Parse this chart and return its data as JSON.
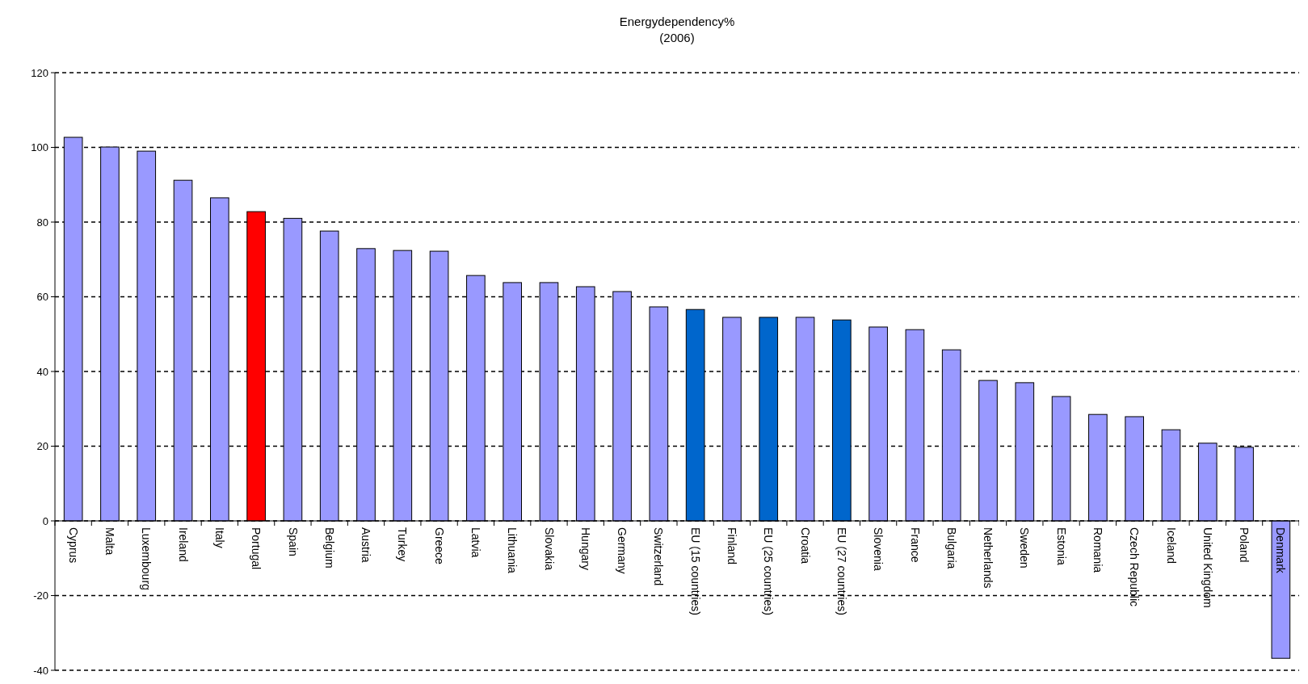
{
  "chart_data": {
    "type": "bar",
    "title": "Energydependency%",
    "subtitle": "(2006)",
    "categories": [
      "Cyprus",
      "Malta",
      "Luxembourg",
      "Ireland",
      "Italy",
      "Portugal",
      "Spain",
      "Belgium",
      "Austria",
      "Turkey",
      "Greece",
      "Latvia",
      "Lithuania",
      "Slovakia",
      "Hungary",
      "Germany",
      "Switzerland",
      "EU (15 countries)",
      "Finland",
      "EU (25 countries)",
      "Croatia",
      "EU (27 countries)",
      "Slovenia",
      "France",
      "Bulgaria",
      "Netherlands",
      "Sweden",
      "Estonia",
      "Romania",
      "Czech Republic",
      "Iceland",
      "United Kingdom",
      "Poland",
      "Denmark"
    ],
    "values": [
      102.7,
      100.1,
      99,
      91.2,
      86.5,
      82.8,
      81,
      77.6,
      72.9,
      72.4,
      72.2,
      65.7,
      63.8,
      63.8,
      62.7,
      61.4,
      57.3,
      56.6,
      54.5,
      54.5,
      54.5,
      53.8,
      51.9,
      51.2,
      45.8,
      37.6,
      37,
      33.3,
      28.5,
      27.9,
      24.4,
      20.8,
      19.7,
      -36.8
    ],
    "colors": [
      "#9999ff",
      "#9999ff",
      "#9999ff",
      "#9999ff",
      "#9999ff",
      "#ff0000",
      "#9999ff",
      "#9999ff",
      "#9999ff",
      "#9999ff",
      "#9999ff",
      "#9999ff",
      "#9999ff",
      "#9999ff",
      "#9999ff",
      "#9999ff",
      "#9999ff",
      "#0066cc",
      "#9999ff",
      "#0066cc",
      "#9999ff",
      "#0066cc",
      "#9999ff",
      "#9999ff",
      "#9999ff",
      "#9999ff",
      "#9999ff",
      "#9999ff",
      "#9999ff",
      "#9999ff",
      "#9999ff",
      "#9999ff",
      "#9999ff",
      "#9999ff"
    ],
    "ylim": [
      -40,
      120
    ],
    "yticks": [
      -40,
      -20,
      0,
      20,
      40,
      60,
      80,
      100,
      120
    ],
    "grid": "y"
  }
}
